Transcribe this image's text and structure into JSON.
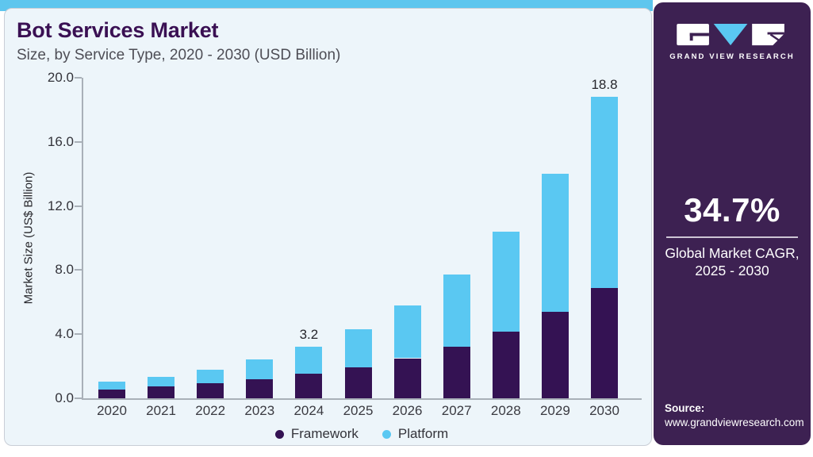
{
  "header": {
    "title": "Bot Services Market",
    "subtitle": "Size, by Service Type, 2020 - 2030 (USD Billion)"
  },
  "chart_data": {
    "type": "bar",
    "stacked": true,
    "title": "Bot Services Market Size, by Service Type, 2020 - 2030 (USD Billion)",
    "categories": [
      "2020",
      "2021",
      "2022",
      "2023",
      "2024",
      "2025",
      "2026",
      "2027",
      "2028",
      "2029",
      "2030"
    ],
    "series": [
      {
        "name": "Framework",
        "color": "#341253",
        "values": [
          0.55,
          0.75,
          0.95,
          1.2,
          1.55,
          1.95,
          2.5,
          3.2,
          4.15,
          5.4,
          6.9
        ]
      },
      {
        "name": "Platform",
        "color": "#5ac8f2",
        "values": [
          0.5,
          0.6,
          0.85,
          1.25,
          1.65,
          2.35,
          3.3,
          4.5,
          6.25,
          8.6,
          11.9
        ]
      }
    ],
    "annotations": [
      {
        "category": "2024",
        "label": "3.2"
      },
      {
        "category": "2030",
        "label": "18.8"
      }
    ],
    "xlabel": "",
    "ylabel": "Market Size (US$ Billion)",
    "yticks": [
      "0.0",
      "4.0",
      "8.0",
      "12.0",
      "16.0",
      "20.0"
    ],
    "ylim": [
      0,
      20
    ],
    "grid": false,
    "legend_position": "bottom"
  },
  "sidebar": {
    "logo_text": "GRAND VIEW RESEARCH",
    "cagr_value": "34.7%",
    "cagr_label_line1": "Global Market CAGR,",
    "cagr_label_line2": "2025 - 2030",
    "source_label": "Source:",
    "source_url": "www.grandviewresearch.com"
  },
  "colors": {
    "accent_blue": "#5ec6ee",
    "bar_framework_purple": "#341253",
    "bar_platform_blue": "#5ac8f2",
    "sidebar_purple": "#3d2152",
    "title_purple": "#3a1053",
    "card_bg": "#edf5fa",
    "axis_gray": "#a9b0b8"
  }
}
